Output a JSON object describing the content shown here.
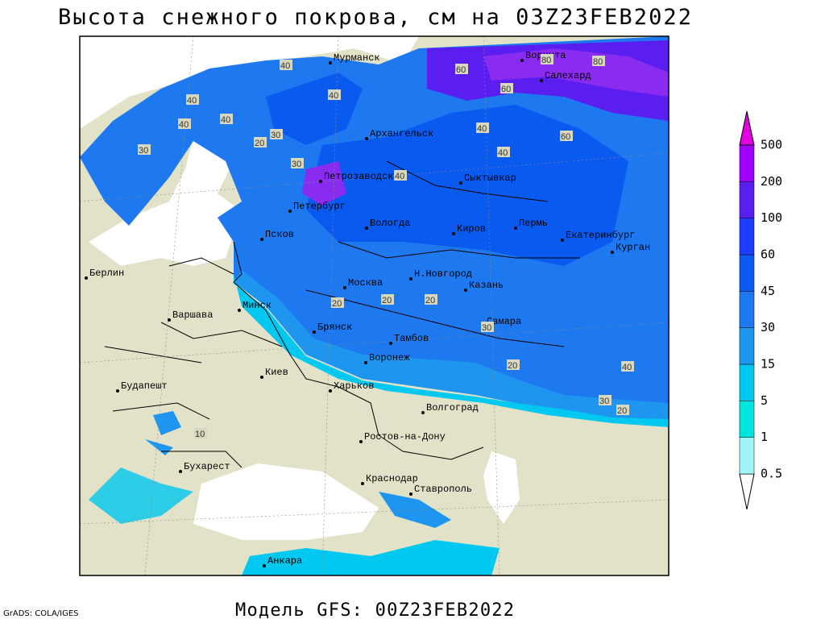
{
  "title": "Высота снежного покрова, см на 03Z23FEB2022",
  "footer": "Модель GFS: 00Z23FEB2022",
  "credit": "GrADS: COLA/IGES",
  "legend": {
    "levels": [
      0.5,
      1,
      5,
      15,
      30,
      45,
      60,
      100,
      200,
      500
    ],
    "colors": [
      "#ffffff",
      "#a0f5f5",
      "#00e6dc",
      "#00c8f0",
      "#1e96f0",
      "#1e78f0",
      "#0a5af0",
      "#1e3cff",
      "#5a1ef0",
      "#a000ff",
      "#e000e0"
    ]
  },
  "cities": [
    "Мурманск",
    "Воркута",
    "Салехард",
    "Архангельск",
    "Петрозаводск",
    "Сыктывкар",
    "Петербург",
    "Вологда",
    "Киров",
    "Пермь",
    "Екатеринбург",
    "Псков",
    "Курган",
    "Берлин",
    "Н.Новгород",
    "Москва",
    "Казань",
    "Минск",
    "Варшава",
    "Самара",
    "Брянск",
    "Тамбов",
    "Киев",
    "Воронеж",
    "Будапешт",
    "Харьков",
    "Волгоград",
    "Ростов-на-Дону",
    "Бухарест",
    "Краснодар",
    "Ставрополь",
    "Анкара"
  ],
  "contour_labels": [
    40,
    60,
    40,
    40,
    30,
    60,
    80,
    80,
    60,
    40,
    20,
    30,
    40,
    40,
    40,
    40,
    20,
    20,
    20,
    30,
    20,
    40,
    30,
    30,
    20,
    10
  ]
}
